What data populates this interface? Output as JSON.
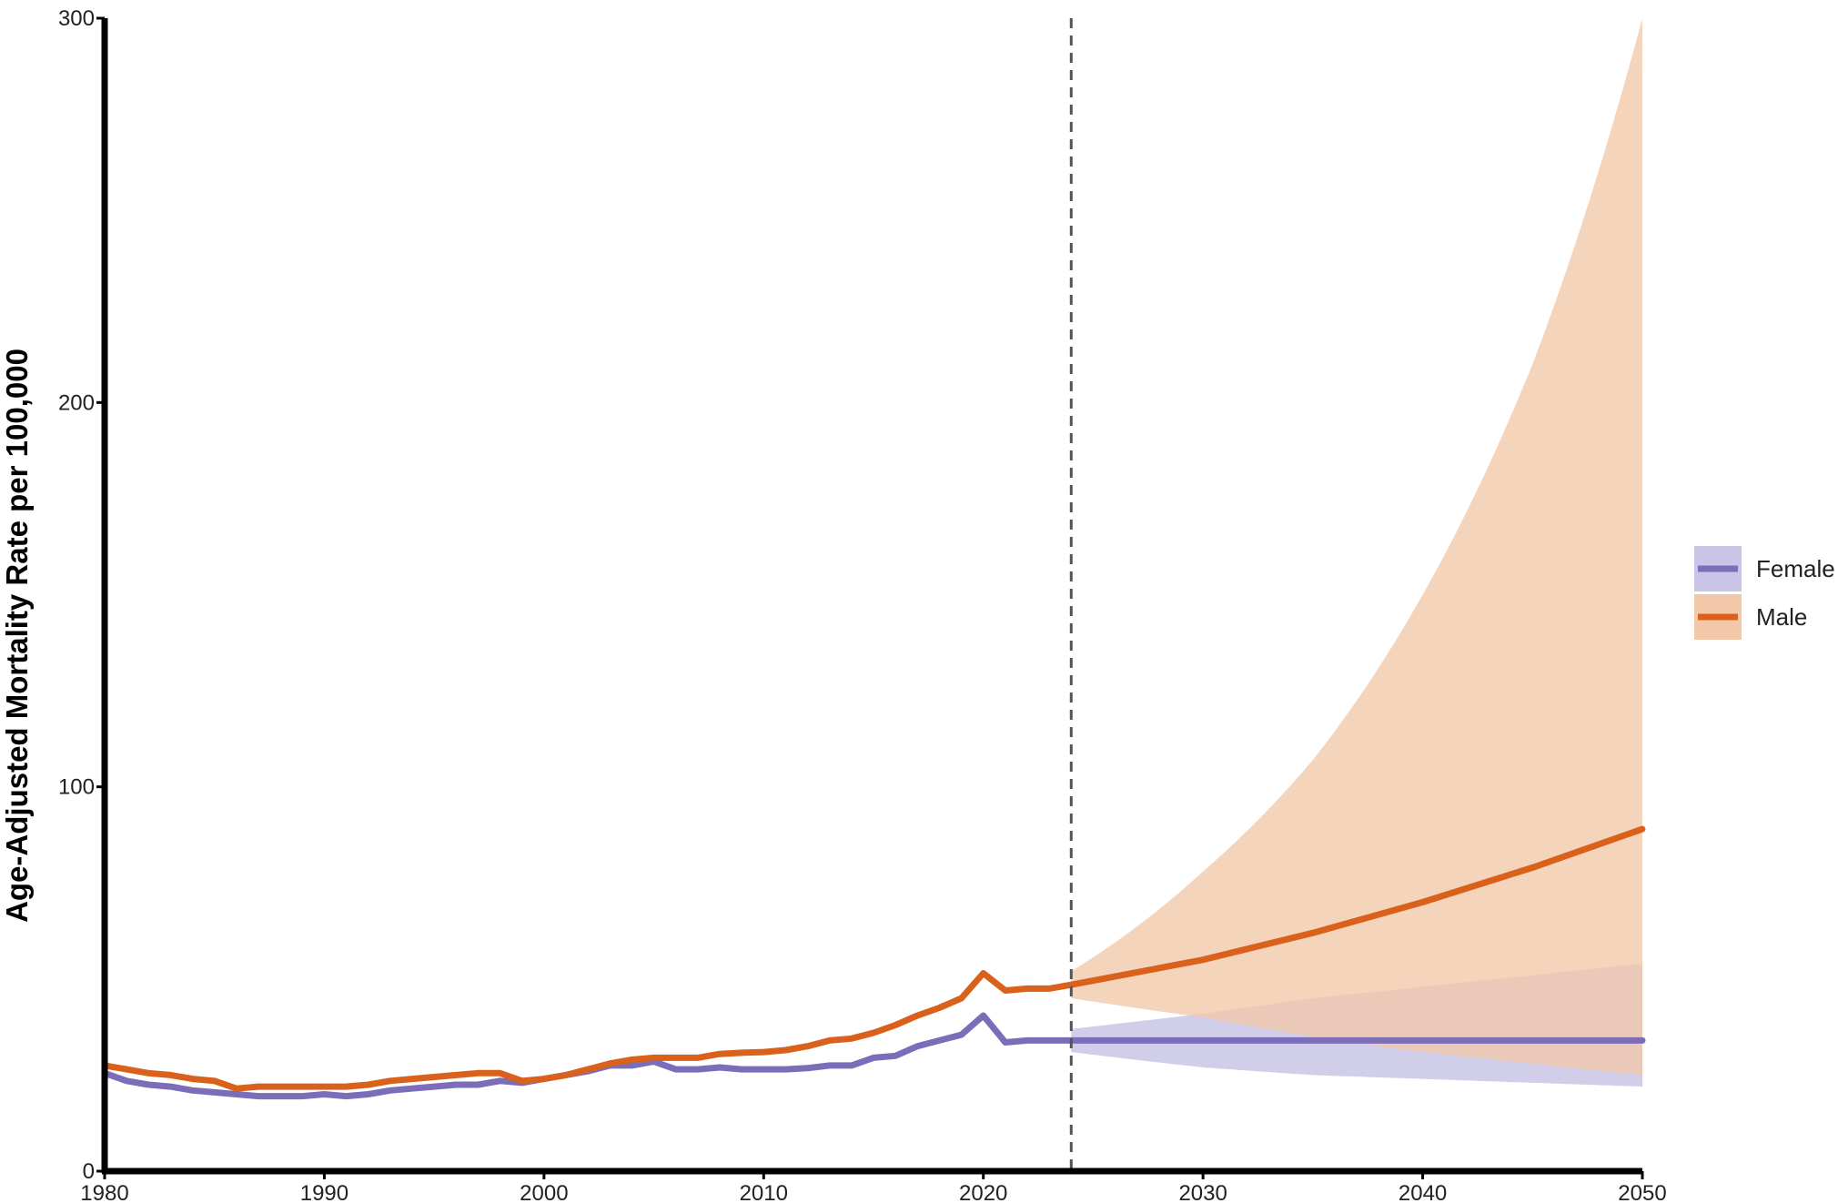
{
  "chart_data": {
    "type": "line",
    "ylabel": "Age-Adjusted Mortality Rate per 100,000",
    "xlabel": "",
    "xlim": [
      1980,
      2050
    ],
    "ylim": [
      0,
      300
    ],
    "x_ticks": [
      1980,
      1990,
      2000,
      2010,
      2020,
      2030,
      2040,
      2050
    ],
    "y_ticks": [
      0,
      100,
      200,
      300
    ],
    "projection_start": 2024,
    "legend_position": "right",
    "grid": false,
    "series": [
      {
        "name": "Female",
        "color": "#7B6DB8",
        "band_color": "#C9C5E6",
        "x": [
          1980,
          1981,
          1982,
          1983,
          1984,
          1985,
          1986,
          1987,
          1988,
          1989,
          1990,
          1991,
          1992,
          1993,
          1994,
          1995,
          1996,
          1997,
          1998,
          1999,
          2000,
          2001,
          2002,
          2003,
          2004,
          2005,
          2006,
          2007,
          2008,
          2009,
          2010,
          2011,
          2012,
          2013,
          2014,
          2015,
          2016,
          2017,
          2018,
          2019,
          2020,
          2021,
          2022,
          2023,
          2024,
          2030,
          2035,
          2040,
          2045,
          2050
        ],
        "values": [
          25.5,
          23.5,
          22.5,
          22,
          21,
          20.5,
          20,
          19.5,
          19.5,
          19.5,
          20,
          19.5,
          20,
          21,
          21.5,
          22,
          22.5,
          22.5,
          23.5,
          23,
          24,
          25,
          26,
          27.5,
          27.5,
          28.5,
          26.5,
          26.5,
          27,
          26.5,
          26.5,
          26.5,
          26.8,
          27.5,
          27.5,
          29.5,
          30,
          32.5,
          34,
          35.5,
          40.5,
          33.5,
          34,
          34,
          34,
          34,
          34,
          34,
          34,
          34
        ],
        "lower": [
          null,
          null,
          null,
          null,
          null,
          null,
          null,
          null,
          null,
          null,
          null,
          null,
          null,
          null,
          null,
          null,
          null,
          null,
          null,
          null,
          null,
          null,
          null,
          null,
          null,
          null,
          null,
          null,
          null,
          null,
          null,
          null,
          null,
          null,
          null,
          null,
          null,
          null,
          null,
          null,
          null,
          null,
          null,
          null,
          31,
          27,
          25,
          24,
          23,
          22
        ],
        "upper": [
          null,
          null,
          null,
          null,
          null,
          null,
          null,
          null,
          null,
          null,
          null,
          null,
          null,
          null,
          null,
          null,
          null,
          null,
          null,
          null,
          null,
          null,
          null,
          null,
          null,
          null,
          null,
          null,
          null,
          null,
          null,
          null,
          null,
          null,
          null,
          null,
          null,
          null,
          null,
          null,
          null,
          null,
          null,
          null,
          37,
          41,
          45,
          48,
          51,
          54
        ]
      },
      {
        "name": "Male",
        "color": "#D9611C",
        "band_color": "#F2C8A9",
        "x": [
          1980,
          1981,
          1982,
          1983,
          1984,
          1985,
          1986,
          1987,
          1988,
          1989,
          1990,
          1991,
          1992,
          1993,
          1994,
          1995,
          1996,
          1997,
          1998,
          1999,
          2000,
          2001,
          2002,
          2003,
          2004,
          2005,
          2006,
          2007,
          2008,
          2009,
          2010,
          2011,
          2012,
          2013,
          2014,
          2015,
          2016,
          2017,
          2018,
          2019,
          2020,
          2021,
          2022,
          2023,
          2024,
          2030,
          2035,
          2040,
          2045,
          2050
        ],
        "values": [
          27.5,
          26.5,
          25.5,
          25,
          24,
          23.5,
          21.5,
          22,
          22,
          22,
          22,
          22,
          22.5,
          23.5,
          24,
          24.5,
          25,
          25.5,
          25.5,
          23.5,
          24,
          25,
          26.5,
          28,
          29,
          29.5,
          29.5,
          29.5,
          30.5,
          30.8,
          31,
          31.5,
          32.5,
          34,
          34.5,
          36,
          38,
          40.5,
          42.5,
          45,
          51.5,
          47,
          47.5,
          47.5,
          48.5,
          55,
          62,
          70,
          79,
          89
        ],
        "lower": [
          null,
          null,
          null,
          null,
          null,
          null,
          null,
          null,
          null,
          null,
          null,
          null,
          null,
          null,
          null,
          null,
          null,
          null,
          null,
          null,
          null,
          null,
          null,
          null,
          null,
          null,
          null,
          null,
          null,
          null,
          null,
          null,
          null,
          null,
          null,
          null,
          null,
          null,
          null,
          null,
          null,
          null,
          null,
          null,
          45,
          40,
          35,
          31,
          28,
          25
        ],
        "upper": [
          null,
          null,
          null,
          null,
          null,
          null,
          null,
          null,
          null,
          null,
          null,
          null,
          null,
          null,
          null,
          null,
          null,
          null,
          null,
          null,
          null,
          null,
          null,
          null,
          null,
          null,
          null,
          null,
          null,
          null,
          null,
          null,
          null,
          null,
          null,
          null,
          null,
          null,
          null,
          null,
          null,
          null,
          null,
          null,
          52,
          78,
          107,
          150,
          210,
          300
        ]
      }
    ]
  }
}
